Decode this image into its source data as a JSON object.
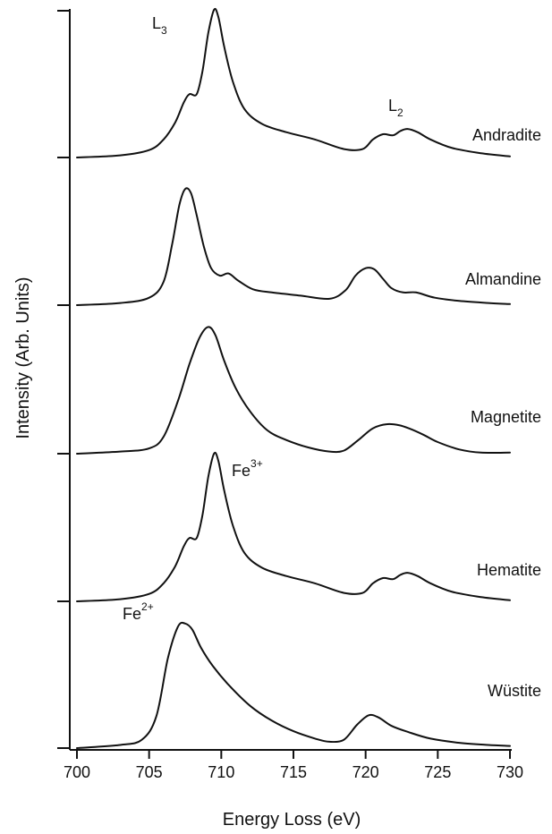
{
  "chart_data": {
    "type": "line",
    "xlabel": "Energy Loss (eV)",
    "ylabel": "Intensity (Arb. Units)",
    "xlim": [
      700,
      730
    ],
    "x_ticks": [
      700,
      705,
      710,
      715,
      720,
      725,
      730
    ],
    "y_ticks_labeled": false,
    "grid": false,
    "series": [
      {
        "name": "Andradite",
        "x": [
          700,
          703,
          705,
          706,
          706.8,
          707.4,
          707.8,
          708.3,
          708.7,
          709.1,
          709.5,
          709.8,
          710.2,
          710.8,
          711.6,
          712.8,
          714.5,
          716.5,
          718.5,
          719.8,
          720.5,
          721.2,
          721.9,
          722.4,
          722.9,
          723.6,
          724.5,
          726,
          728,
          730
        ],
        "y": [
          0.0,
          0.02,
          0.07,
          0.17,
          0.33,
          0.52,
          0.6,
          0.6,
          0.82,
          1.18,
          1.4,
          1.33,
          1.05,
          0.72,
          0.46,
          0.32,
          0.24,
          0.17,
          0.08,
          0.08,
          0.17,
          0.22,
          0.21,
          0.25,
          0.27,
          0.24,
          0.17,
          0.09,
          0.04,
          0.01
        ]
      },
      {
        "name": "Almandine",
        "x": [
          700,
          703,
          705,
          706,
          706.6,
          707.1,
          707.5,
          707.9,
          708.3,
          708.8,
          709.3,
          709.9,
          710.5,
          711.2,
          712.2,
          713.5,
          715.5,
          717.5,
          718.6,
          719.3,
          720.0,
          720.6,
          721.2,
          721.8,
          722.6,
          723.5,
          724.8,
          726.5,
          728.5,
          730
        ],
        "y": [
          0.0,
          0.02,
          0.07,
          0.22,
          0.58,
          0.95,
          1.1,
          1.06,
          0.85,
          0.55,
          0.35,
          0.28,
          0.3,
          0.23,
          0.15,
          0.12,
          0.09,
          0.06,
          0.14,
          0.28,
          0.35,
          0.34,
          0.25,
          0.16,
          0.12,
          0.12,
          0.07,
          0.04,
          0.02,
          0.01
        ]
      },
      {
        "name": "Magnetite",
        "x": [
          700,
          703,
          705,
          706,
          707,
          707.8,
          708.5,
          709.1,
          709.6,
          710.2,
          711.0,
          712.0,
          713.2,
          714.5,
          716.0,
          717.5,
          718.5,
          719.5,
          720.5,
          721.5,
          722.3,
          723.0,
          724.0,
          725.0,
          726.5,
          728.0,
          730
        ],
        "y": [
          0.0,
          0.02,
          0.05,
          0.16,
          0.5,
          0.85,
          1.1,
          1.2,
          1.12,
          0.88,
          0.62,
          0.4,
          0.22,
          0.13,
          0.06,
          0.02,
          0.03,
          0.13,
          0.24,
          0.28,
          0.27,
          0.24,
          0.18,
          0.11,
          0.04,
          0.01,
          0.01
        ]
      },
      {
        "name": "Hematite",
        "x": [
          700,
          703,
          705,
          706,
          706.8,
          707.4,
          707.8,
          708.3,
          708.7,
          709.1,
          709.5,
          709.8,
          710.2,
          710.8,
          711.6,
          712.8,
          714.5,
          716.5,
          718.5,
          719.8,
          720.5,
          721.2,
          721.9,
          722.4,
          722.9,
          723.6,
          724.5,
          726,
          728,
          730
        ],
        "y": [
          0.0,
          0.02,
          0.07,
          0.17,
          0.33,
          0.52,
          0.6,
          0.6,
          0.82,
          1.18,
          1.4,
          1.33,
          1.05,
          0.72,
          0.46,
          0.32,
          0.24,
          0.17,
          0.08,
          0.08,
          0.17,
          0.22,
          0.21,
          0.25,
          0.27,
          0.24,
          0.17,
          0.09,
          0.04,
          0.01
        ]
      },
      {
        "name": "Wüstite",
        "x": [
          700,
          703,
          704.5,
          705.5,
          706.3,
          707.0,
          707.5,
          708.0,
          708.6,
          709.4,
          710.5,
          712.0,
          713.5,
          715.0,
          716.5,
          717.5,
          718.5,
          719.4,
          720.2,
          720.9,
          721.8,
          723.0,
          724.5,
          726.5,
          728.5,
          730
        ],
        "y": [
          0.0,
          0.03,
          0.08,
          0.3,
          0.85,
          1.15,
          1.18,
          1.12,
          0.95,
          0.78,
          0.6,
          0.4,
          0.26,
          0.16,
          0.09,
          0.06,
          0.08,
          0.22,
          0.31,
          0.29,
          0.21,
          0.15,
          0.09,
          0.05,
          0.03,
          0.02
        ]
      }
    ],
    "annotations": {
      "l3": {
        "main": "L",
        "sub": "3"
      },
      "l2": {
        "main": "L",
        "sub": "2"
      },
      "fe3": {
        "main": "Fe",
        "sup": "3+"
      },
      "fe2": {
        "main": "Fe",
        "sup": "2+"
      }
    }
  }
}
